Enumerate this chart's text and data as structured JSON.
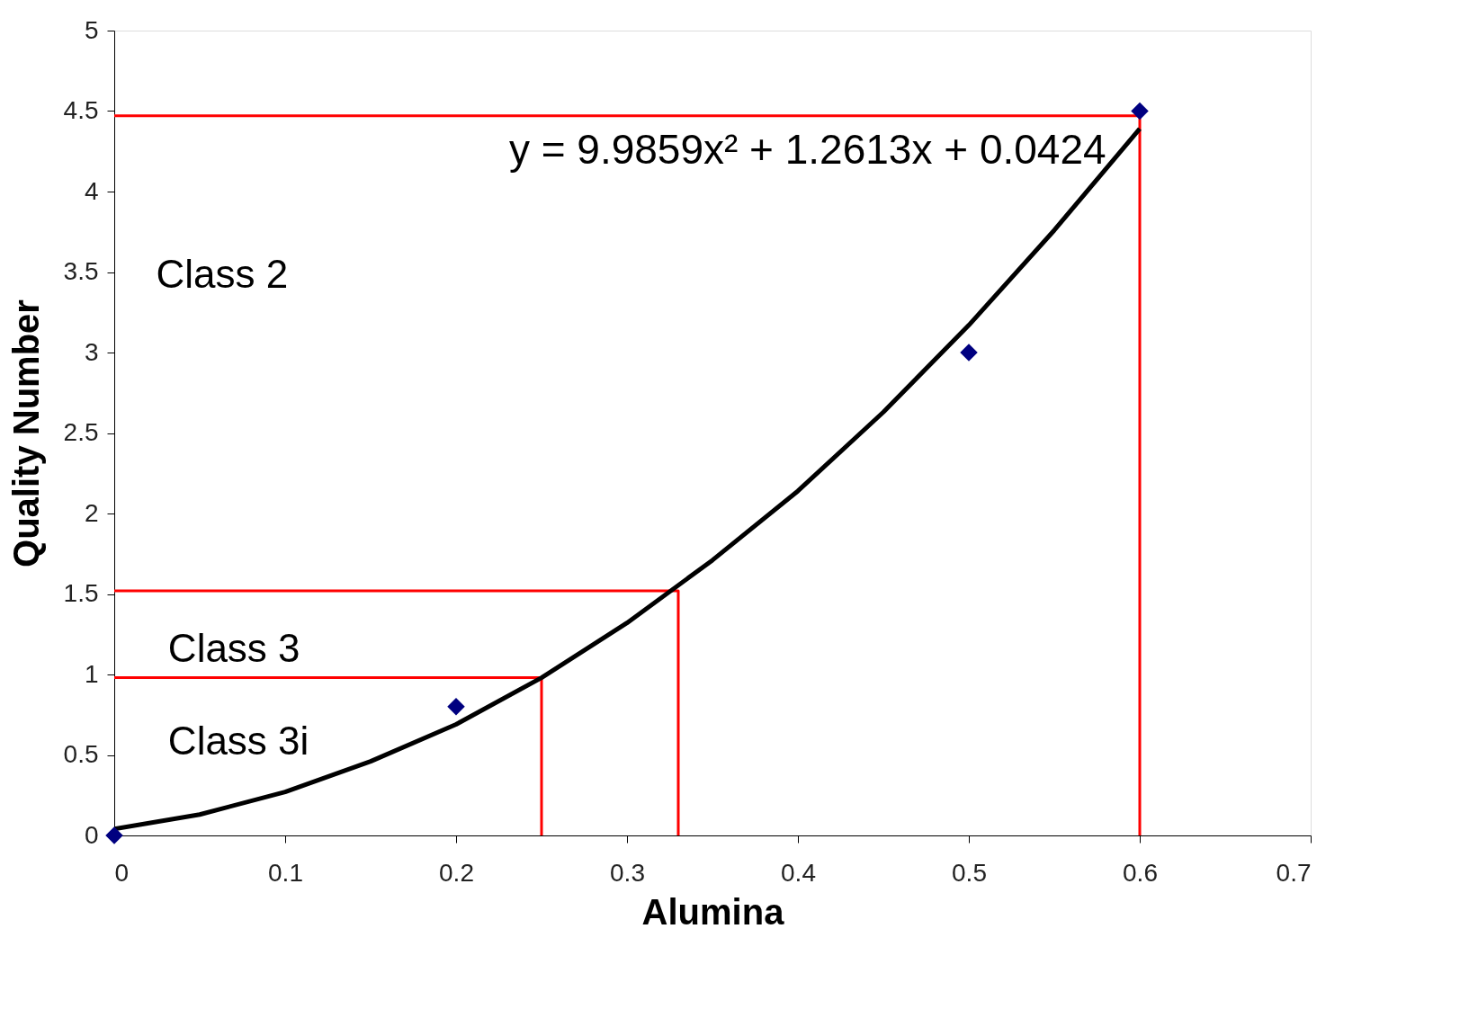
{
  "chart_data": {
    "type": "scatter",
    "xlabel": "Alumina",
    "ylabel": "Quality Number",
    "xlim": [
      0,
      0.7
    ],
    "xticks": [
      0,
      0.1,
      0.2,
      0.3,
      0.4,
      0.5,
      0.6,
      0.7
    ],
    "ylim": [
      0,
      5
    ],
    "yticks": [
      0,
      0.5,
      1,
      1.5,
      2,
      2.5,
      3,
      3.5,
      4,
      4.5,
      5
    ],
    "grid": false,
    "series": [
      {
        "type": "line",
        "color": "#ff0000",
        "x": [
          0,
          0.6,
          0.6
        ],
        "values": [
          4.47,
          4.47,
          0
        ]
      },
      {
        "type": "line",
        "color": "#ff0000",
        "x": [
          0,
          0.33,
          0.33
        ],
        "values": [
          1.52,
          1.52,
          0
        ]
      },
      {
        "type": "line",
        "color": "#ff0000",
        "x": [
          0,
          0.25,
          0.25
        ],
        "values": [
          0.98,
          0.98,
          0
        ]
      },
      {
        "type": "line",
        "color": "#000000",
        "x": [
          0,
          0.05,
          0.1,
          0.15,
          0.2,
          0.25,
          0.3,
          0.35,
          0.4,
          0.45,
          0.5,
          0.55,
          0.6
        ],
        "values": [
          0.04,
          0.13,
          0.27,
          0.46,
          0.69,
          0.98,
          1.32,
          1.71,
          2.14,
          2.63,
          3.17,
          3.76,
          4.39
        ]
      },
      {
        "color": "#000080",
        "marker": "diamond",
        "x": [
          0,
          0.2,
          0.5,
          0.6
        ],
        "values": [
          0,
          0.8,
          3.0,
          4.5
        ]
      }
    ],
    "annotations": [
      "y = 9.9859x² + 1.2613x + 0.0424",
      "Class 2",
      "Class 3",
      "Class 3i"
    ]
  }
}
